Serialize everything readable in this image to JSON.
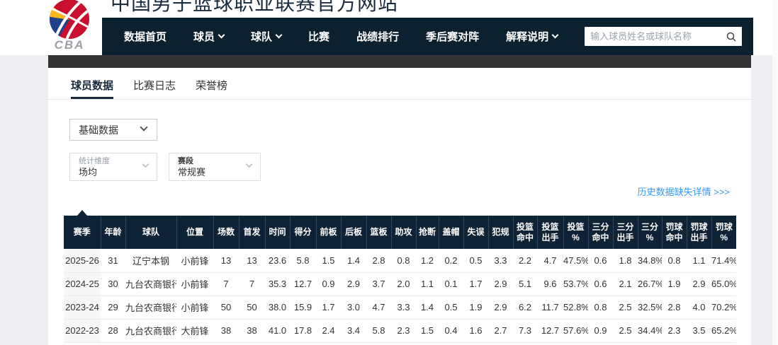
{
  "site": {
    "title": "中国男子篮球职业联赛官方网站",
    "logo_text": "CBA"
  },
  "nav": {
    "items": [
      {
        "label": "数据首页",
        "dropdown": false
      },
      {
        "label": "球员",
        "dropdown": true
      },
      {
        "label": "球队",
        "dropdown": true
      },
      {
        "label": "比赛",
        "dropdown": false
      },
      {
        "label": "战绩排行",
        "dropdown": false
      },
      {
        "label": "季后赛对阵",
        "dropdown": false
      },
      {
        "label": "解释说明",
        "dropdown": true
      }
    ],
    "search_placeholder": "输入球员姓名或球队名称"
  },
  "tabs": [
    {
      "label": "球员数据",
      "active": true
    },
    {
      "label": "比赛日志",
      "active": false
    },
    {
      "label": "荣誉榜",
      "active": false
    }
  ],
  "filters": {
    "data_type_value": "基础数据",
    "dimension_label": "统计维度",
    "dimension_value": "场均",
    "stage_label": "赛段",
    "stage_value": "常规赛"
  },
  "history_link_label": "历史数据缺失详情 >>>",
  "table": {
    "headers": [
      "赛季",
      "年龄",
      "球队",
      "位置",
      "场数",
      "首发",
      "时间",
      "得分",
      "前板",
      "后板",
      "篮板",
      "助攻",
      "抢断",
      "盖帽",
      "失误",
      "犯规",
      "投篮\n命中",
      "投篮\n出手",
      "投篮\n%",
      "三分\n命中",
      "三分\n出手",
      "三分\n%",
      "罚球\n命中",
      "罚球\n出手",
      "罚球\n%"
    ],
    "rows": [
      [
        "2025-26",
        "31",
        "辽宁本钢",
        "小前锋",
        "13",
        "13",
        "23.6",
        "5.8",
        "1.5",
        "1.4",
        "2.8",
        "0.8",
        "1.2",
        "0.2",
        "0.5",
        "3.3",
        "2.2",
        "4.7",
        "47.5%",
        "0.6",
        "1.8",
        "34.8%",
        "0.8",
        "1.1",
        "71.4%"
      ],
      [
        "2024-25",
        "30",
        "九台农商银行",
        "小前锋",
        "7",
        "7",
        "35.3",
        "12.7",
        "0.9",
        "2.9",
        "3.7",
        "2.0",
        "1.1",
        "0.1",
        "1.7",
        "2.9",
        "5.1",
        "9.6",
        "53.7%",
        "0.6",
        "2.1",
        "26.7%",
        "1.9",
        "2.9",
        "65.0%"
      ],
      [
        "2023-24",
        "29",
        "九台农商银行",
        "小前锋",
        "50",
        "50",
        "38.0",
        "15.9",
        "1.7",
        "3.0",
        "4.7",
        "3.3",
        "1.4",
        "0.5",
        "1.9",
        "2.9",
        "6.2",
        "11.7",
        "52.8%",
        "0.8",
        "2.5",
        "32.5%",
        "2.8",
        "4.0",
        "70.2%"
      ],
      [
        "2022-23",
        "28",
        "九台农商银行",
        "大前锋",
        "38",
        "38",
        "41.0",
        "17.8",
        "2.4",
        "3.4",
        "5.8",
        "2.3",
        "1.5",
        "0.4",
        "1.6",
        "2.7",
        "7.3",
        "12.7",
        "57.6%",
        "0.9",
        "2.5",
        "34.4%",
        "2.3",
        "3.5",
        "65.2%"
      ]
    ]
  },
  "colors": {
    "nav_bg": "#0b2130",
    "table_header_bg": "#0e2336",
    "link_blue": "#3597fd",
    "strip_gray": "#333333",
    "logo_red": "#c8102e",
    "logo_blue": "#1d428a",
    "logo_yellow": "#ffb81c"
  }
}
